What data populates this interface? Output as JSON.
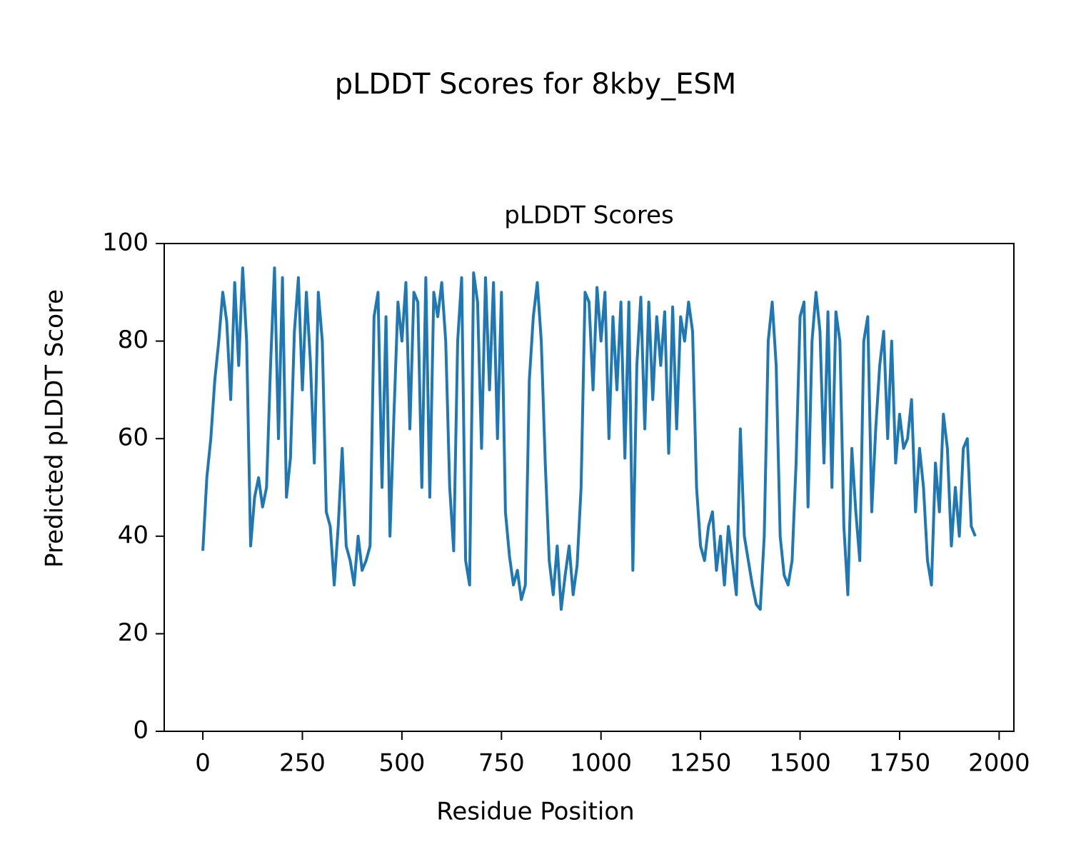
{
  "chart_data": {
    "type": "line",
    "suptitle": "pLDDT Scores for 8kby_ESM",
    "title": "pLDDT Scores",
    "x_label": "Residue Position",
    "y_label": "Predicted pLDDT Score",
    "xlim": [
      -97,
      2037
    ],
    "ylim": [
      0,
      100
    ],
    "xticks": [
      0,
      250,
      500,
      750,
      1000,
      1250,
      1500,
      1750,
      2000
    ],
    "yticks": [
      0,
      20,
      40,
      60,
      80,
      100
    ],
    "grid": false,
    "series": [
      {
        "name": "pLDDT",
        "color": "#1f77b4",
        "x": [
          0,
          10,
          20,
          30,
          40,
          50,
          60,
          70,
          80,
          90,
          100,
          110,
          120,
          130,
          140,
          150,
          160,
          170,
          180,
          190,
          200,
          210,
          220,
          230,
          240,
          250,
          260,
          270,
          280,
          290,
          300,
          310,
          320,
          330,
          340,
          350,
          360,
          370,
          380,
          390,
          400,
          410,
          420,
          430,
          440,
          450,
          460,
          470,
          480,
          490,
          500,
          510,
          520,
          530,
          540,
          550,
          560,
          570,
          580,
          590,
          600,
          610,
          620,
          630,
          640,
          650,
          660,
          670,
          680,
          690,
          700,
          710,
          720,
          730,
          740,
          750,
          760,
          770,
          780,
          790,
          800,
          810,
          820,
          830,
          840,
          850,
          860,
          870,
          880,
          890,
          900,
          910,
          920,
          930,
          940,
          950,
          960,
          970,
          980,
          990,
          1000,
          1010,
          1020,
          1030,
          1040,
          1050,
          1060,
          1070,
          1080,
          1090,
          1100,
          1110,
          1120,
          1130,
          1140,
          1150,
          1160,
          1170,
          1180,
          1190,
          1200,
          1210,
          1220,
          1230,
          1240,
          1250,
          1260,
          1270,
          1280,
          1290,
          1300,
          1310,
          1320,
          1330,
          1340,
          1350,
          1360,
          1370,
          1380,
          1390,
          1400,
          1410,
          1420,
          1430,
          1440,
          1450,
          1460,
          1470,
          1480,
          1490,
          1500,
          1510,
          1520,
          1530,
          1540,
          1550,
          1560,
          1570,
          1580,
          1590,
          1600,
          1610,
          1620,
          1630,
          1640,
          1650,
          1660,
          1670,
          1680,
          1690,
          1700,
          1710,
          1720,
          1730,
          1740,
          1750,
          1760,
          1770,
          1780,
          1790,
          1800,
          1810,
          1820,
          1830,
          1840,
          1850,
          1860,
          1870,
          1880,
          1890,
          1900,
          1910,
          1920,
          1930,
          1940
        ],
        "values": [
          37,
          52,
          60,
          72,
          80,
          90,
          84,
          68,
          92,
          75,
          95,
          80,
          38,
          48,
          52,
          46,
          50,
          75,
          95,
          60,
          93,
          48,
          56,
          82,
          93,
          70,
          90,
          76,
          55,
          90,
          80,
          45,
          42,
          30,
          42,
          58,
          38,
          35,
          30,
          40,
          33,
          35,
          38,
          85,
          90,
          50,
          85,
          40,
          65,
          88,
          80,
          92,
          62,
          90,
          88,
          50,
          93,
          48,
          90,
          85,
          92,
          80,
          50,
          37,
          80,
          93,
          35,
          30,
          94,
          88,
          58,
          93,
          70,
          92,
          60,
          90,
          45,
          36,
          30,
          33,
          27,
          30,
          72,
          85,
          92,
          80,
          55,
          35,
          28,
          38,
          25,
          32,
          38,
          28,
          34,
          50,
          90,
          88,
          70,
          91,
          80,
          90,
          60,
          85,
          70,
          88,
          56,
          88,
          33,
          75,
          89,
          62,
          88,
          68,
          85,
          75,
          86,
          57,
          87,
          62,
          85,
          80,
          88,
          82,
          50,
          38,
          35,
          42,
          45,
          33,
          40,
          30,
          42,
          35,
          28,
          62,
          40,
          35,
          30,
          26,
          25,
          40,
          80,
          88,
          75,
          40,
          32,
          30,
          35,
          55,
          85,
          88,
          46,
          80,
          90,
          82,
          55,
          86,
          50,
          86,
          80,
          42,
          28,
          58,
          45,
          35,
          80,
          85,
          45,
          62,
          75,
          82,
          60,
          80,
          55,
          65,
          58,
          60,
          68,
          45,
          58,
          50,
          35,
          30,
          55,
          45,
          65,
          58,
          38,
          50,
          40,
          58,
          60,
          42,
          40
        ]
      }
    ]
  }
}
